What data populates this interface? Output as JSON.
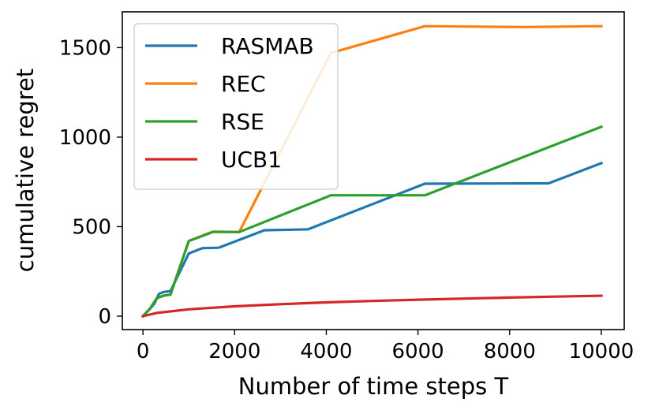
{
  "chart_data": {
    "type": "line",
    "xlabel": "Number of time steps T",
    "ylabel": "cumulative regret",
    "xlim": [
      -450,
      10500
    ],
    "ylim": [
      -75,
      1700
    ],
    "xticks": [
      0,
      2000,
      4000,
      6000,
      8000,
      10000
    ],
    "xtick_labels": [
      "0",
      "2000",
      "4000",
      "6000",
      "8000",
      "10000"
    ],
    "yticks": [
      0,
      500,
      1000,
      1500
    ],
    "ytick_labels": [
      "0",
      "500",
      "1000",
      "1500"
    ],
    "grid": false,
    "legend_position": "top-left",
    "series": [
      {
        "name": "RASMAB",
        "color": "#1f77b4",
        "x": [
          0,
          150,
          250,
          350,
          450,
          600,
          1000,
          1300,
          1650,
          2650,
          3600,
          6150,
          8850,
          10000
        ],
        "y": [
          0,
          40,
          70,
          125,
          135,
          140,
          350,
          380,
          382,
          480,
          485,
          740,
          742,
          855
        ]
      },
      {
        "name": "REC",
        "color": "#ff7f0e",
        "x": [
          0,
          150,
          300,
          450,
          600,
          1000,
          1500,
          2000,
          2100,
          4100,
          6150,
          8300,
          10000
        ],
        "y": [
          0,
          40,
          100,
          115,
          120,
          420,
          470,
          470,
          470,
          1470,
          1620,
          1615,
          1620
        ]
      },
      {
        "name": "RSE",
        "color": "#2ca02c",
        "x": [
          0,
          150,
          300,
          450,
          600,
          1000,
          1550,
          2100,
          4100,
          6150,
          10000
        ],
        "y": [
          0,
          40,
          100,
          115,
          120,
          420,
          472,
          470,
          675,
          675,
          1058
        ]
      },
      {
        "name": "UCB1",
        "color": "#d62728",
        "x": [
          0,
          300,
          1000,
          2000,
          3000,
          4000,
          5000,
          6000,
          7000,
          8000,
          9000,
          10000
        ],
        "y": [
          0,
          18,
          38,
          55,
          67,
          77,
          85,
          92,
          98,
          104,
          109,
          114
        ]
      }
    ]
  }
}
